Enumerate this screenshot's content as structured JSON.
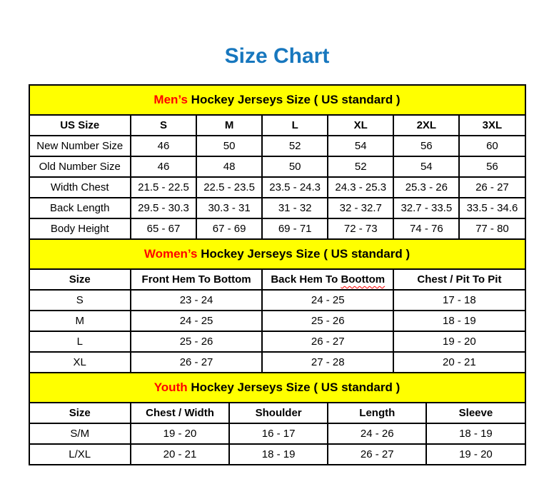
{
  "title": "Size Chart",
  "colors": {
    "title_blue": "#1777BE",
    "banner_yellow": "#FFFF00",
    "highlight_red": "#FF0000",
    "border_black": "#000000"
  },
  "tables": [
    {
      "name": "mens-size-table",
      "banner": {
        "highlight": "Men’s",
        "rest": " Hockey Jerseys Size ( US standard )"
      },
      "columns": [
        "US Size",
        "S",
        "M",
        "L",
        "XL",
        "2XL",
        "3XL"
      ],
      "rows": [
        [
          "New Number Size",
          "46",
          "50",
          "52",
          "54",
          "56",
          "60"
        ],
        [
          "Old Number Size",
          "46",
          "48",
          "50",
          "52",
          "54",
          "56"
        ],
        [
          "Width Chest",
          "21.5 - 22.5",
          "22.5 - 23.5",
          "23.5 - 24.3",
          "24.3 - 25.3",
          "25.3 - 26",
          "26 - 27"
        ],
        [
          "Back Length",
          "29.5 - 30.3",
          "30.3 - 31",
          "31 - 32",
          "32 - 32.7",
          "32.7 - 33.5",
          "33.5 - 34.6"
        ],
        [
          "Body Height",
          "65 - 67",
          "67 - 69",
          "69 - 71",
          "72 - 73",
          "74 - 76",
          "77 - 80"
        ]
      ],
      "bold_row_labels": false
    },
    {
      "name": "womens-size-table",
      "banner": {
        "highlight": "Women’s",
        "rest": " Hockey Jerseys Size ( US standard )"
      },
      "columns": [
        "Size",
        "Front Hem To Bottom",
        "Back Hem To Boottom",
        "Chest / Pit To Pit"
      ],
      "misspelled_word": "Boottom",
      "rows": [
        [
          "S",
          "23 - 24",
          "24 - 25",
          "17 - 18"
        ],
        [
          "M",
          "24 - 25",
          "25 - 26",
          "18 - 19"
        ],
        [
          "L",
          "25 - 26",
          "26 - 27",
          "19 - 20"
        ],
        [
          "XL",
          "26 - 27",
          "27 - 28",
          "20 - 21"
        ]
      ],
      "bold_row_labels": true
    },
    {
      "name": "youth-size-table",
      "banner": {
        "highlight": "Youth",
        "rest": " Hockey Jerseys Size ( US standard )"
      },
      "columns": [
        "Size",
        "Chest / Width",
        "Shoulder",
        "Length",
        "Sleeve"
      ],
      "rows": [
        [
          "S/M",
          "19 - 20",
          "16 - 17",
          "24 - 26",
          "18 - 19"
        ],
        [
          "L/XL",
          "20 - 21",
          "18 - 19",
          "26 - 27",
          "19 - 20"
        ]
      ],
      "bold_row_labels": true
    }
  ]
}
